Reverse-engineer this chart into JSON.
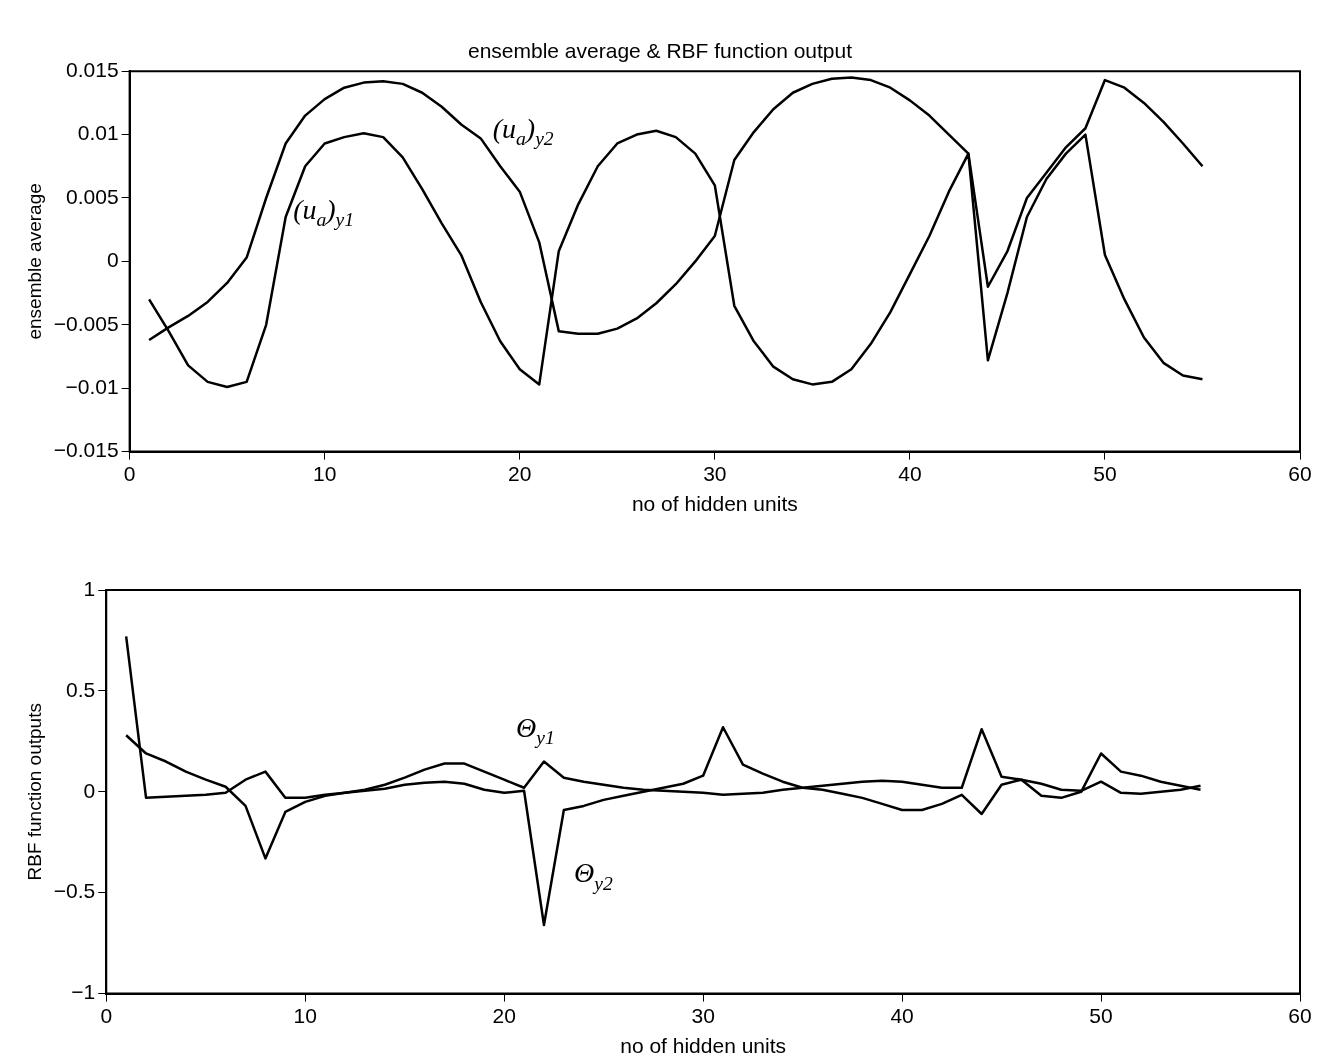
{
  "chart_data": [
    {
      "type": "line",
      "title": "ensemble average & RBF function output",
      "xlabel": "no of hidden units",
      "ylabel": "ensemble average",
      "x": [
        1,
        2,
        3,
        4,
        5,
        6,
        7,
        8,
        9,
        10,
        11,
        12,
        13,
        14,
        15,
        16,
        17,
        18,
        19,
        20,
        21,
        22,
        23,
        24,
        25,
        26,
        27,
        28,
        29,
        30,
        31,
        32,
        33,
        34,
        35,
        36,
        37,
        38,
        39,
        40,
        41,
        42,
        43,
        44,
        45,
        46,
        47,
        48,
        49,
        50,
        51,
        52,
        53,
        54,
        55
      ],
      "series": [
        {
          "name": "(u$_{a}$)$_{y1}$",
          "color": "#000000",
          "values": [
            -0.003,
            -0.0055,
            -0.0082,
            -0.0095,
            -0.0099,
            -0.0095,
            -0.005,
            0.0035,
            0.0075,
            0.0093,
            0.0098,
            0.0101,
            0.0098,
            0.0082,
            0.0057,
            0.003,
            0.0005,
            -0.0032,
            -0.0063,
            -0.0085,
            -0.0097,
            0.0008,
            0.0045,
            0.0075,
            0.0093,
            0.01,
            0.0103,
            0.0098,
            0.0085,
            0.006,
            -0.0035,
            -0.0063,
            -0.0083,
            -0.0093,
            -0.0097,
            -0.0095,
            -0.0085,
            -0.0065,
            -0.004,
            -0.001,
            0.002,
            0.0055,
            0.0085,
            -0.0078,
            -0.0025,
            0.0035,
            0.0065,
            0.0085,
            0.01,
            0.0005,
            -0.003,
            -0.006,
            -0.008,
            -0.009,
            -0.0093
          ]
        },
        {
          "name": "(u$_{a}$)$_{y2}$",
          "color": "#000000",
          "values": [
            -0.0062,
            -0.0052,
            -0.0043,
            -0.0032,
            -0.0017,
            0.0003,
            0.005,
            0.0093,
            0.0115,
            0.0128,
            0.0137,
            0.0141,
            0.0142,
            0.014,
            0.0133,
            0.0122,
            0.0108,
            0.0097,
            0.0075,
            0.0055,
            0.0015,
            -0.0055,
            -0.0057,
            -0.0057,
            -0.0053,
            -0.0045,
            -0.0033,
            -0.0018,
            0.0,
            0.002,
            0.008,
            0.0102,
            0.012,
            0.0133,
            0.014,
            0.0144,
            0.0145,
            0.0143,
            0.0137,
            0.0127,
            0.0115,
            0.01,
            0.0085,
            -0.002,
            0.0008,
            0.005,
            0.007,
            0.009,
            0.0105,
            0.0143,
            0.0137,
            0.0125,
            0.011,
            0.0093,
            0.0075
          ]
        }
      ],
      "xlim": [
        0,
        60
      ],
      "xticks": [
        0,
        10,
        20,
        30,
        40,
        50,
        60
      ],
      "ylim": [
        -0.015,
        0.015
      ],
      "yticks": [
        -0.015,
        -0.01,
        -0.005,
        0,
        0.005,
        0.01,
        0.015
      ],
      "grid": false,
      "legend": false,
      "marker": "none",
      "line_style": "solid"
    },
    {
      "type": "line",
      "xlabel": "no of hidden units",
      "ylabel": "RBF function outputs",
      "x": [
        1,
        2,
        3,
        4,
        5,
        6,
        7,
        8,
        9,
        10,
        11,
        12,
        13,
        14,
        15,
        16,
        17,
        18,
        19,
        20,
        21,
        22,
        23,
        24,
        25,
        26,
        27,
        28,
        29,
        30,
        31,
        32,
        33,
        34,
        35,
        36,
        37,
        38,
        39,
        40,
        41,
        42,
        43,
        44,
        45,
        46,
        47,
        48,
        49,
        50,
        51,
        52,
        53,
        54,
        55
      ],
      "series": [
        {
          "name": "Θ$_{y1}$",
          "color": "#000000",
          "values": [
            0.28,
            0.19,
            0.15,
            0.1,
            0.06,
            0.025,
            -0.07,
            -0.33,
            -0.1,
            -0.05,
            -0.02,
            -0.005,
            0.01,
            0.035,
            0.07,
            0.11,
            0.14,
            0.14,
            0.1,
            0.06,
            0.02,
            0.15,
            0.07,
            0.05,
            0.035,
            0.02,
            0.01,
            0.005,
            0.0,
            -0.005,
            -0.015,
            -0.01,
            -0.005,
            0.01,
            0.02,
            0.03,
            0.04,
            0.05,
            0.055,
            0.05,
            0.035,
            0.02,
            0.02,
            0.31,
            0.075,
            0.06,
            -0.02,
            -0.03,
            0.0,
            0.19,
            0.1,
            0.08,
            0.05,
            0.03,
            0.01
          ]
        },
        {
          "name": "Θ$_{y2}$",
          "color": "#000000",
          "values": [
            0.77,
            -0.03,
            -0.025,
            -0.02,
            -0.015,
            -0.005,
            0.06,
            0.1,
            -0.03,
            -0.03,
            -0.015,
            -0.005,
            0.005,
            0.015,
            0.035,
            0.045,
            0.05,
            0.04,
            0.01,
            -0.005,
            0.005,
            -0.66,
            -0.09,
            -0.07,
            -0.04,
            -0.02,
            0.0,
            0.02,
            0.04,
            0.08,
            0.32,
            0.135,
            0.09,
            0.05,
            0.02,
            0.01,
            -0.01,
            -0.03,
            -0.06,
            -0.09,
            -0.09,
            -0.06,
            -0.015,
            -0.11,
            0.035,
            0.06,
            0.04,
            0.01,
            0.005,
            0.05,
            -0.005,
            -0.01,
            0.0,
            0.01,
            0.03
          ]
        }
      ],
      "xlim": [
        0,
        60
      ],
      "xticks": [
        0,
        10,
        20,
        30,
        40,
        50,
        60
      ],
      "ylim": [
        -1,
        1
      ],
      "yticks": [
        -1,
        -0.5,
        0,
        0.5,
        1
      ],
      "grid": false,
      "legend": false,
      "marker": "none",
      "line_style": "solid"
    }
  ]
}
